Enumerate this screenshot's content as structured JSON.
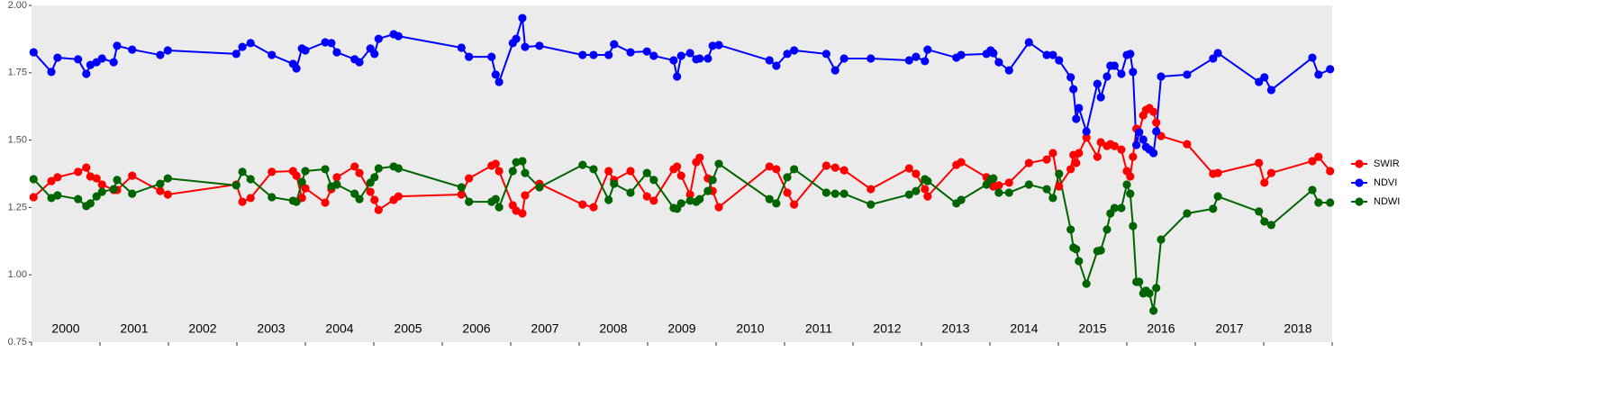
{
  "chart_data": {
    "type": "line",
    "year_labels": [
      "2000",
      "2001",
      "2002",
      "2003",
      "2004",
      "2005",
      "2006",
      "2007",
      "2008",
      "2009",
      "2010",
      "2011",
      "2012",
      "2013",
      "2014",
      "2015",
      "2016",
      "2017",
      "2018"
    ],
    "xlim": [
      2000,
      2019
    ],
    "xticks": [
      2000,
      2001,
      2002,
      2003,
      2004,
      2005,
      2006,
      2007,
      2008,
      2009,
      2010,
      2011,
      2012,
      2013,
      2014,
      2015,
      2016,
      2017,
      2018,
      2019
    ],
    "ylim": [
      0.75,
      2.0
    ],
    "yticks": [
      {
        "value": 0.75,
        "label": "0.75"
      },
      {
        "value": 1.0,
        "label": "1.00"
      },
      {
        "value": 1.25,
        "label": "1.25"
      },
      {
        "value": 1.5,
        "label": "1.50"
      },
      {
        "value": 1.75,
        "label": "1.75"
      },
      {
        "value": 2.0,
        "label": "2.00"
      }
    ],
    "grid": true,
    "legend": "right",
    "x": [
      2000.03,
      2000.29,
      2000.38,
      2000.68,
      2000.8,
      2000.86,
      2000.95,
      2001.03,
      2001.2,
      2001.25,
      2001.47,
      2001.88,
      2001.99,
      2002.99,
      2003.08,
      2003.2,
      2003.51,
      2003.82,
      2003.87,
      2003.95,
      2004.0,
      2004.29,
      2004.38,
      2004.46,
      2004.72,
      2004.79,
      2004.95,
      2005.01,
      2005.07,
      2005.29,
      2005.36,
      2006.28,
      2006.39,
      2006.72,
      2006.78,
      2006.83,
      2007.03,
      2007.08,
      2007.17,
      2007.21,
      2007.42,
      2008.05,
      2008.21,
      2008.43,
      2008.51,
      2008.75,
      2008.99,
      2009.09,
      2009.38,
      2009.43,
      2009.49,
      2009.62,
      2009.71,
      2009.76,
      2009.88,
      2009.95,
      2010.04,
      2010.78,
      2010.88,
      2011.04,
      2011.14,
      2011.61,
      2011.74,
      2011.87,
      2012.26,
      2012.82,
      2012.92,
      2013.05,
      2013.09,
      2013.51,
      2013.58,
      2013.95,
      2014.01,
      2014.05,
      2014.13,
      2014.28,
      2014.57,
      2014.83,
      2014.92,
      2015.01,
      2015.18,
      2015.22,
      2015.26,
      2015.3,
      2015.41,
      2015.57,
      2015.62,
      2015.71,
      2015.76,
      2015.82,
      2015.92,
      2016.0,
      2016.05,
      2016.09,
      2016.14,
      2016.18,
      2016.24,
      2016.28,
      2016.33,
      2016.39,
      2016.43,
      2016.5,
      2016.88,
      2017.26,
      2017.33,
      2017.93,
      2018.01,
      2018.11,
      2018.71,
      2018.8,
      2018.97
    ],
    "series": [
      {
        "name": "SWIR",
        "color": "#ff0000",
        "values": [
          1.288,
          1.348,
          1.362,
          1.382,
          1.398,
          1.365,
          1.358,
          1.335,
          1.315,
          1.315,
          1.368,
          1.311,
          1.298,
          1.335,
          1.271,
          1.285,
          1.382,
          1.385,
          1.368,
          1.285,
          1.321,
          1.268,
          1.318,
          1.362,
          1.402,
          1.378,
          1.308,
          1.278,
          1.241,
          1.278,
          1.291,
          1.298,
          1.358,
          1.405,
          1.412,
          1.385,
          1.258,
          1.238,
          1.228,
          1.295,
          1.338,
          1.261,
          1.251,
          1.385,
          1.352,
          1.385,
          1.291,
          1.275,
          1.392,
          1.402,
          1.368,
          1.298,
          1.418,
          1.435,
          1.358,
          1.311,
          1.251,
          1.402,
          1.392,
          1.305,
          1.261,
          1.405,
          1.398,
          1.388,
          1.318,
          1.395,
          1.375,
          1.318,
          1.291,
          1.408,
          1.418,
          1.362,
          1.338,
          1.328,
          1.332,
          1.342,
          1.415,
          1.428,
          1.452,
          1.328,
          1.392,
          1.445,
          1.415,
          1.452,
          1.509,
          1.438,
          1.492,
          1.478,
          1.485,
          1.478,
          1.465,
          1.385,
          1.365,
          1.438,
          1.542,
          1.529,
          1.592,
          1.612,
          1.619,
          1.605,
          1.565,
          1.515,
          1.485,
          1.375,
          1.378,
          1.415,
          1.342,
          1.378,
          1.422,
          1.438,
          1.385
        ]
      },
      {
        "name": "NDVI",
        "color": "#0000ff",
        "values": [
          1.826,
          1.753,
          1.806,
          1.8,
          1.746,
          1.779,
          1.789,
          1.803,
          1.789,
          1.85,
          1.836,
          1.816,
          1.833,
          1.82,
          1.846,
          1.86,
          1.816,
          1.783,
          1.766,
          1.84,
          1.833,
          1.863,
          1.86,
          1.826,
          1.8,
          1.789,
          1.84,
          1.82,
          1.876,
          1.893,
          1.886,
          1.843,
          1.809,
          1.809,
          1.743,
          1.716,
          1.86,
          1.876,
          1.953,
          1.846,
          1.85,
          1.816,
          1.816,
          1.816,
          1.856,
          1.826,
          1.829,
          1.813,
          1.796,
          1.736,
          1.813,
          1.823,
          1.8,
          1.803,
          1.803,
          1.85,
          1.853,
          1.796,
          1.776,
          1.82,
          1.833,
          1.82,
          1.759,
          1.803,
          1.803,
          1.796,
          1.809,
          1.793,
          1.836,
          1.806,
          1.816,
          1.82,
          1.833,
          1.823,
          1.789,
          1.759,
          1.863,
          1.816,
          1.816,
          1.796,
          1.733,
          1.689,
          1.579,
          1.619,
          1.532,
          1.709,
          1.659,
          1.736,
          1.776,
          1.776,
          1.746,
          1.816,
          1.82,
          1.753,
          1.482,
          1.529,
          1.502,
          1.475,
          1.465,
          1.452,
          1.532,
          1.736,
          1.743,
          1.803,
          1.823,
          1.716,
          1.733,
          1.686,
          1.806,
          1.743,
          1.763
        ]
      },
      {
        "name": "NDWI",
        "color": "#006400",
        "values": [
          1.355,
          1.285,
          1.295,
          1.281,
          1.255,
          1.265,
          1.291,
          1.308,
          1.318,
          1.352,
          1.301,
          1.338,
          1.358,
          1.332,
          1.382,
          1.355,
          1.288,
          1.275,
          1.271,
          1.345,
          1.385,
          1.392,
          1.328,
          1.335,
          1.301,
          1.281,
          1.342,
          1.362,
          1.395,
          1.402,
          1.395,
          1.325,
          1.271,
          1.271,
          1.281,
          1.251,
          1.385,
          1.418,
          1.422,
          1.378,
          1.325,
          1.408,
          1.392,
          1.278,
          1.338,
          1.305,
          1.378,
          1.352,
          1.248,
          1.245,
          1.265,
          1.275,
          1.271,
          1.281,
          1.311,
          1.352,
          1.412,
          1.281,
          1.265,
          1.362,
          1.392,
          1.305,
          1.301,
          1.301,
          1.261,
          1.298,
          1.311,
          1.355,
          1.348,
          1.265,
          1.278,
          1.335,
          1.355,
          1.358,
          1.305,
          1.305,
          1.335,
          1.318,
          1.285,
          1.375,
          1.168,
          1.101,
          1.095,
          1.051,
          0.967,
          1.088,
          1.091,
          1.168,
          1.228,
          1.248,
          1.248,
          1.335,
          1.301,
          1.181,
          0.974,
          0.974,
          0.931,
          0.941,
          0.931,
          0.867,
          0.951,
          1.131,
          1.228,
          1.245,
          1.291,
          1.235,
          1.198,
          1.185,
          1.315,
          1.268,
          1.268
        ]
      }
    ]
  }
}
